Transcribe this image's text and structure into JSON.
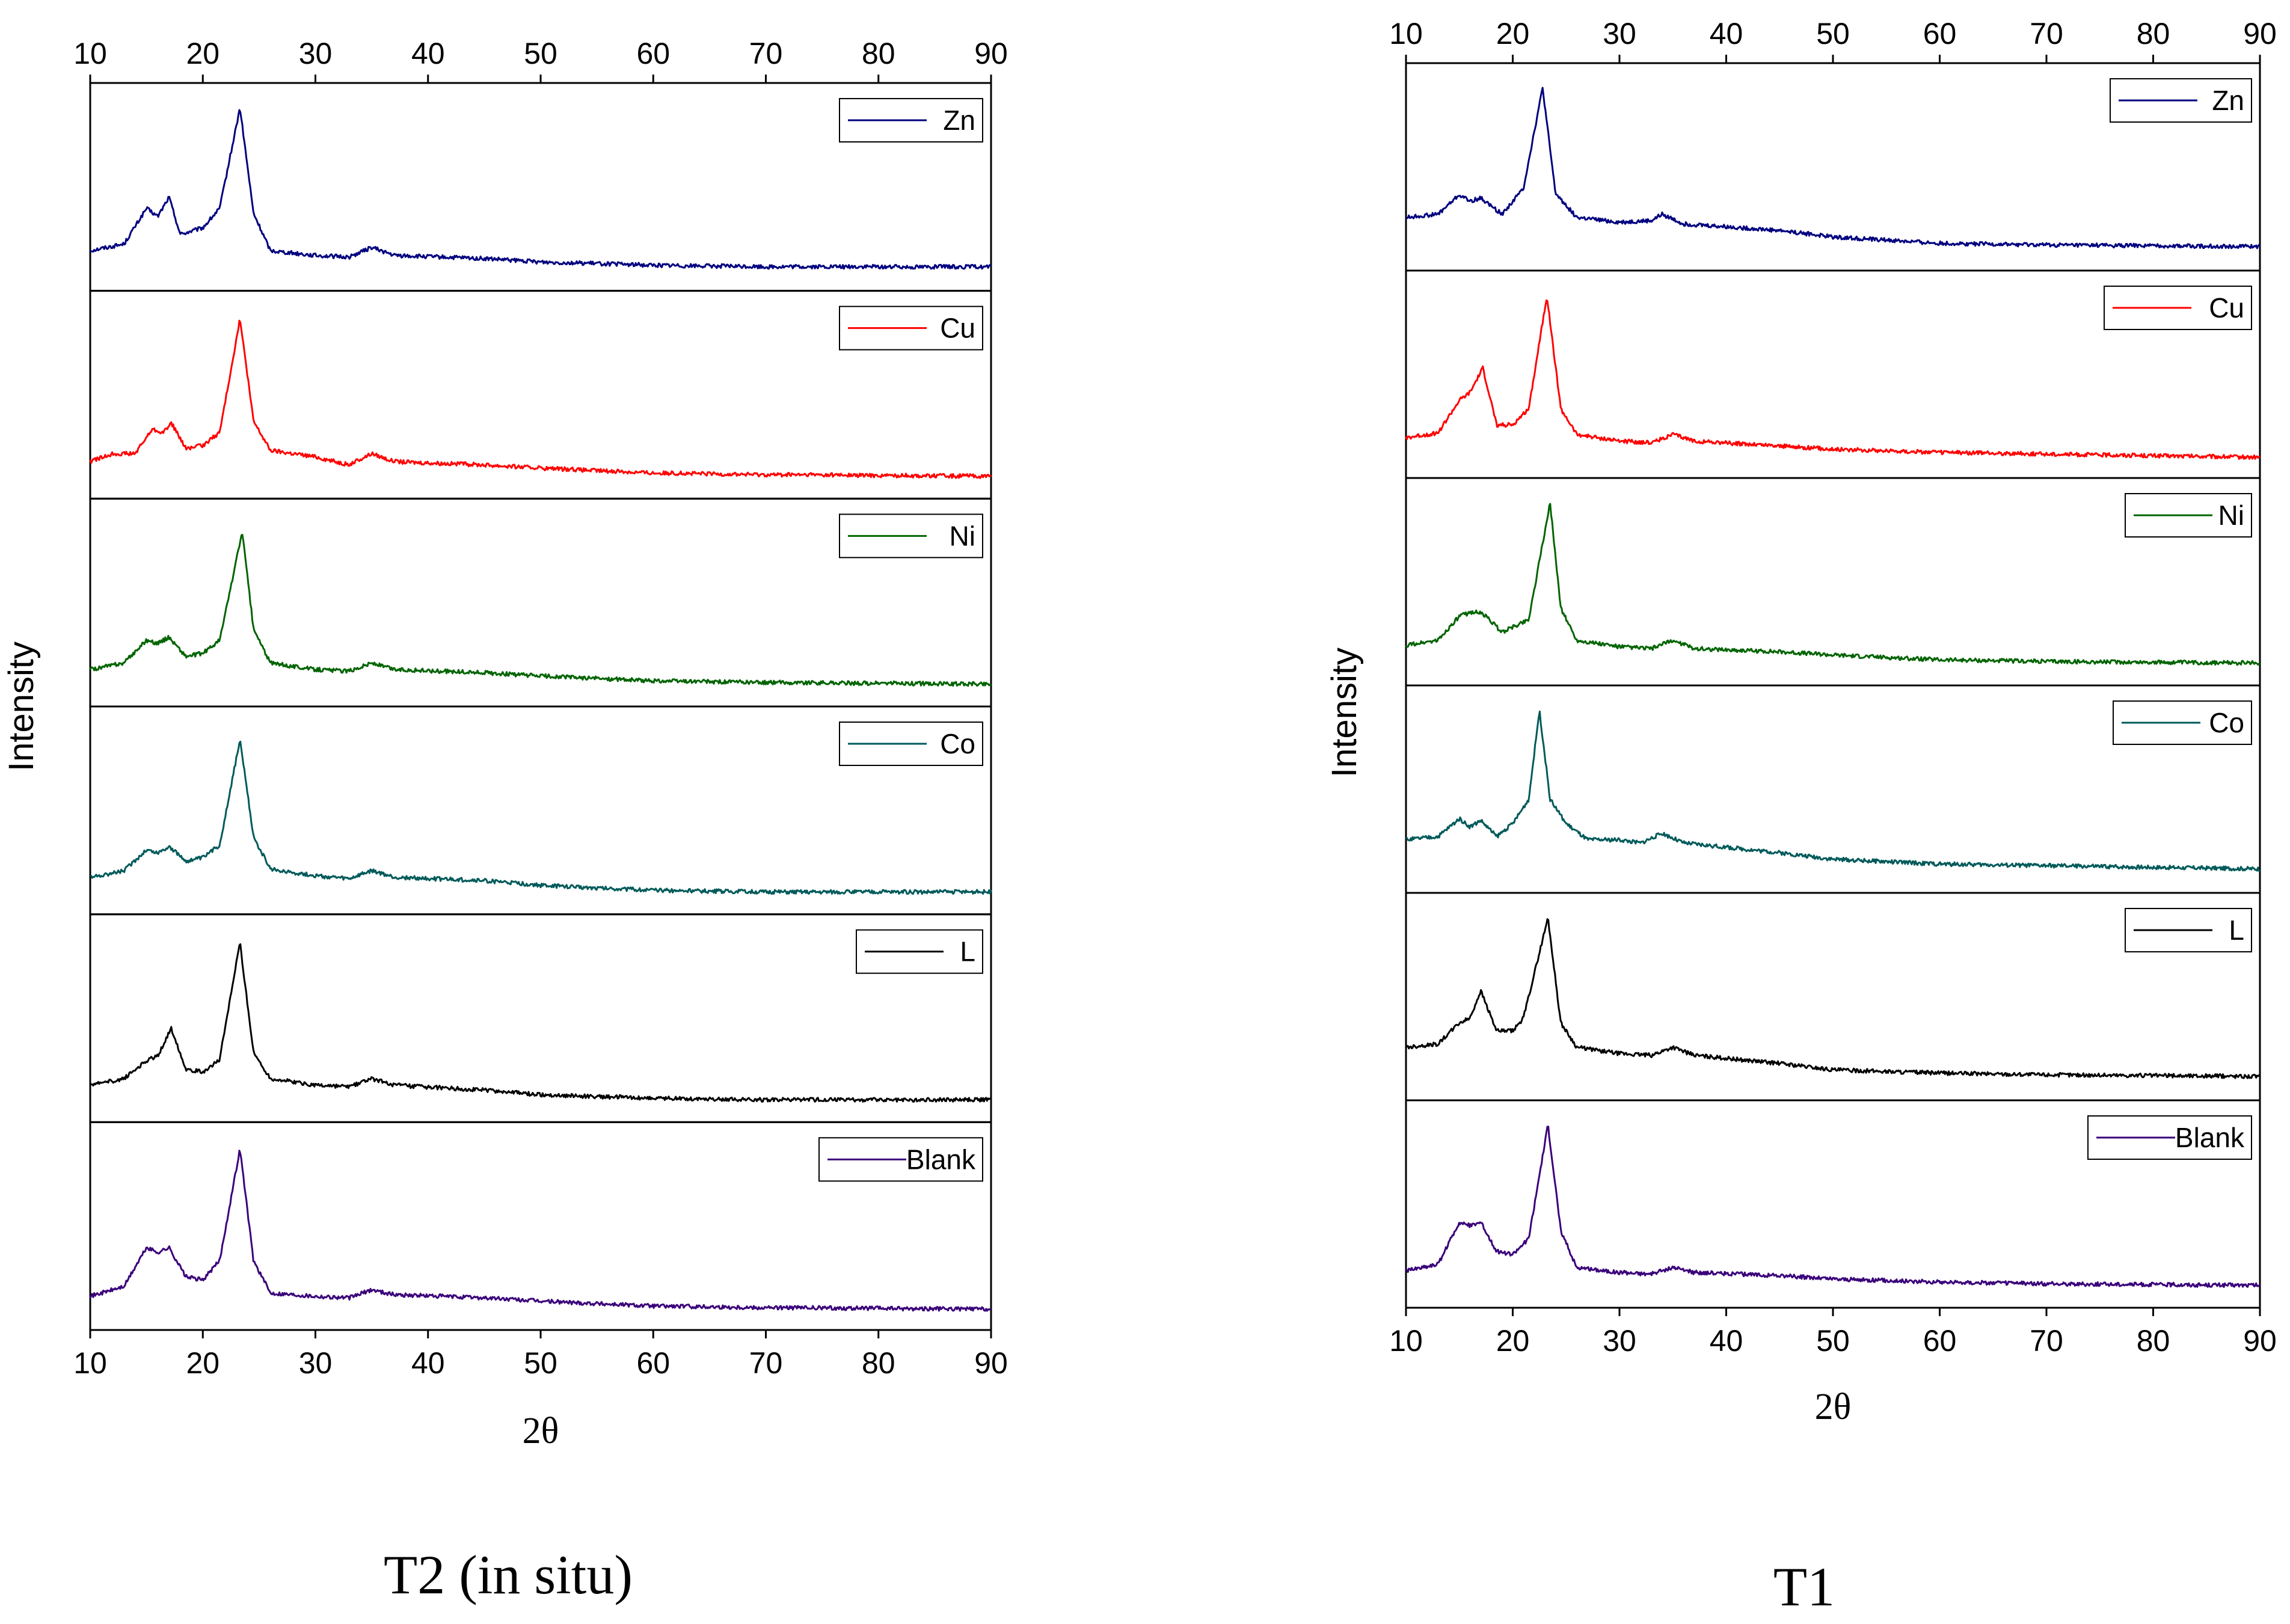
{
  "chart_data": [
    {
      "type": "line",
      "caption": "T2 (in situ)",
      "xlabel": "2θ",
      "ylabel": "Intensity",
      "xlim": [
        10,
        90
      ],
      "xticks": [
        10,
        20,
        30,
        40,
        50,
        60,
        70,
        80,
        90
      ],
      "series": [
        {
          "name": "Zn",
          "color": "#00007f",
          "points": [
            [
              10,
              0.12
            ],
            [
              13,
              0.16
            ],
            [
              15,
              0.38
            ],
            [
              16,
              0.33
            ],
            [
              17,
              0.45
            ],
            [
              18,
              0.22
            ],
            [
              20,
              0.26
            ],
            [
              21.5,
              0.38
            ],
            [
              23.3,
              1.0
            ],
            [
              24.5,
              0.35
            ],
            [
              26,
              0.12
            ],
            [
              30,
              0.09
            ],
            [
              33,
              0.08
            ],
            [
              35,
              0.14
            ],
            [
              37,
              0.09
            ],
            [
              45,
              0.07
            ],
            [
              50,
              0.05
            ],
            [
              60,
              0.03
            ],
            [
              70,
              0.02
            ],
            [
              90,
              0.02
            ]
          ]
        },
        {
          "name": "Cu",
          "color": "#ff0000",
          "points": [
            [
              10,
              0.1
            ],
            [
              12,
              0.15
            ],
            [
              14,
              0.15
            ],
            [
              15.5,
              0.3
            ],
            [
              16.5,
              0.28
            ],
            [
              17.2,
              0.34
            ],
            [
              18.5,
              0.18
            ],
            [
              20,
              0.2
            ],
            [
              21.5,
              0.28
            ],
            [
              23.3,
              0.98
            ],
            [
              24.5,
              0.35
            ],
            [
              26,
              0.17
            ],
            [
              30,
              0.13
            ],
            [
              33,
              0.08
            ],
            [
              35,
              0.15
            ],
            [
              37,
              0.1
            ],
            [
              45,
              0.08
            ],
            [
              50,
              0.06
            ],
            [
              60,
              0.03
            ],
            [
              70,
              0.02
            ],
            [
              90,
              0.01
            ]
          ]
        },
        {
          "name": "Ni",
          "color": "#006400",
          "points": [
            [
              10,
              0.1
            ],
            [
              13,
              0.14
            ],
            [
              15,
              0.28
            ],
            [
              16,
              0.26
            ],
            [
              17,
              0.3
            ],
            [
              18.5,
              0.18
            ],
            [
              20,
              0.2
            ],
            [
              21.5,
              0.28
            ],
            [
              23.5,
              0.95
            ],
            [
              24.5,
              0.35
            ],
            [
              26,
              0.14
            ],
            [
              30,
              0.1
            ],
            [
              33,
              0.09
            ],
            [
              35,
              0.14
            ],
            [
              37,
              0.1
            ],
            [
              45,
              0.08
            ],
            [
              50,
              0.06
            ],
            [
              60,
              0.03
            ],
            [
              70,
              0.02
            ],
            [
              90,
              0.01
            ]
          ]
        },
        {
          "name": "Co",
          "color": "#005a5a",
          "points": [
            [
              10,
              0.1
            ],
            [
              13,
              0.14
            ],
            [
              15,
              0.27
            ],
            [
              16,
              0.25
            ],
            [
              17,
              0.29
            ],
            [
              18.5,
              0.2
            ],
            [
              20,
              0.22
            ],
            [
              21.5,
              0.3
            ],
            [
              23.3,
              0.95
            ],
            [
              24.5,
              0.35
            ],
            [
              26,
              0.15
            ],
            [
              30,
              0.11
            ],
            [
              33,
              0.09
            ],
            [
              35,
              0.14
            ],
            [
              37,
              0.1
            ],
            [
              45,
              0.08
            ],
            [
              50,
              0.05
            ],
            [
              60,
              0.02
            ],
            [
              70,
              0.01
            ],
            [
              90,
              0.01
            ]
          ]
        },
        {
          "name": "L",
          "color": "#000000",
          "points": [
            [
              10,
              0.1
            ],
            [
              13,
              0.14
            ],
            [
              15,
              0.25
            ],
            [
              16,
              0.28
            ],
            [
              17.2,
              0.45
            ],
            [
              18.5,
              0.2
            ],
            [
              20,
              0.18
            ],
            [
              21.5,
              0.26
            ],
            [
              23.3,
              0.98
            ],
            [
              24.5,
              0.3
            ],
            [
              26,
              0.14
            ],
            [
              30,
              0.1
            ],
            [
              33,
              0.09
            ],
            [
              35,
              0.14
            ],
            [
              37,
              0.1
            ],
            [
              45,
              0.07
            ],
            [
              50,
              0.04
            ],
            [
              60,
              0.02
            ],
            [
              70,
              0.01
            ],
            [
              90,
              0.01
            ]
          ]
        },
        {
          "name": "Blank",
          "color": "#3a007a",
          "points": [
            [
              10,
              0.08
            ],
            [
              13,
              0.14
            ],
            [
              15,
              0.38
            ],
            [
              16,
              0.35
            ],
            [
              17,
              0.38
            ],
            [
              18.5,
              0.2
            ],
            [
              20,
              0.18
            ],
            [
              21.5,
              0.3
            ],
            [
              23.3,
              0.99
            ],
            [
              24.5,
              0.3
            ],
            [
              26,
              0.1
            ],
            [
              30,
              0.08
            ],
            [
              33,
              0.07
            ],
            [
              35,
              0.12
            ],
            [
              37,
              0.09
            ],
            [
              45,
              0.07
            ],
            [
              50,
              0.05
            ],
            [
              60,
              0.02
            ],
            [
              70,
              0.01
            ],
            [
              90,
              0.0
            ]
          ]
        }
      ]
    },
    {
      "type": "line",
      "caption": "T1",
      "xlabel": "2θ",
      "ylabel": "Intensity",
      "xlim": [
        10,
        90
      ],
      "xticks": [
        10,
        20,
        30,
        40,
        50,
        60,
        70,
        80,
        90
      ],
      "series": [
        {
          "name": "Zn",
          "color": "#00007f",
          "points": [
            [
              10,
              0.2
            ],
            [
              13,
              0.22
            ],
            [
              15,
              0.34
            ],
            [
              16,
              0.3
            ],
            [
              17,
              0.32
            ],
            [
              19,
              0.22
            ],
            [
              21,
              0.38
            ],
            [
              22.8,
              1.0
            ],
            [
              24,
              0.35
            ],
            [
              26,
              0.2
            ],
            [
              30,
              0.17
            ],
            [
              33,
              0.18
            ],
            [
              34,
              0.22
            ],
            [
              36,
              0.16
            ],
            [
              45,
              0.12
            ],
            [
              50,
              0.08
            ],
            [
              60,
              0.04
            ],
            [
              70,
              0.03
            ],
            [
              90,
              0.02
            ]
          ]
        },
        {
          "name": "Cu",
          "color": "#ff0000",
          "points": [
            [
              10,
              0.12
            ],
            [
              13,
              0.15
            ],
            [
              15,
              0.35
            ],
            [
              16,
              0.4
            ],
            [
              17.2,
              0.55
            ],
            [
              18.5,
              0.2
            ],
            [
              20,
              0.2
            ],
            [
              21.5,
              0.3
            ],
            [
              23.2,
              1.0
            ],
            [
              24.5,
              0.3
            ],
            [
              26,
              0.14
            ],
            [
              30,
              0.1
            ],
            [
              33,
              0.09
            ],
            [
              35,
              0.14
            ],
            [
              37,
              0.1
            ],
            [
              45,
              0.07
            ],
            [
              50,
              0.05
            ],
            [
              60,
              0.03
            ],
            [
              70,
              0.02
            ],
            [
              90,
              0.0
            ]
          ]
        },
        {
          "name": "Ni",
          "color": "#006400",
          "points": [
            [
              10,
              0.12
            ],
            [
              13,
              0.15
            ],
            [
              15,
              0.3
            ],
            [
              16.5,
              0.33
            ],
            [
              17.5,
              0.3
            ],
            [
              19,
              0.2
            ],
            [
              21.5,
              0.28
            ],
            [
              23.5,
              1.0
            ],
            [
              24.5,
              0.35
            ],
            [
              26,
              0.15
            ],
            [
              30,
              0.11
            ],
            [
              33,
              0.1
            ],
            [
              35,
              0.15
            ],
            [
              37,
              0.1
            ],
            [
              45,
              0.08
            ],
            [
              50,
              0.06
            ],
            [
              60,
              0.03
            ],
            [
              70,
              0.02
            ],
            [
              90,
              0.01
            ]
          ]
        },
        {
          "name": "Co",
          "color": "#005a5a",
          "points": [
            [
              10,
              0.2
            ],
            [
              13,
              0.22
            ],
            [
              15,
              0.33
            ],
            [
              16,
              0.28
            ],
            [
              17,
              0.32
            ],
            [
              18.5,
              0.22
            ],
            [
              20,
              0.3
            ],
            [
              21.5,
              0.45
            ],
            [
              22.5,
              1.0
            ],
            [
              23.5,
              0.45
            ],
            [
              25,
              0.3
            ],
            [
              27,
              0.2
            ],
            [
              30,
              0.2
            ],
            [
              32,
              0.18
            ],
            [
              34,
              0.24
            ],
            [
              36,
              0.18
            ],
            [
              45,
              0.12
            ],
            [
              50,
              0.08
            ],
            [
              60,
              0.05
            ],
            [
              70,
              0.04
            ],
            [
              90,
              0.02
            ]
          ]
        },
        {
          "name": "L",
          "color": "#000000",
          "points": [
            [
              10,
              0.2
            ],
            [
              13,
              0.22
            ],
            [
              15,
              0.35
            ],
            [
              16,
              0.38
            ],
            [
              17,
              0.55
            ],
            [
              18.5,
              0.3
            ],
            [
              20,
              0.3
            ],
            [
              21,
              0.38
            ],
            [
              23.3,
              1.0
            ],
            [
              24.5,
              0.35
            ],
            [
              26,
              0.2
            ],
            [
              30,
              0.16
            ],
            [
              33,
              0.15
            ],
            [
              35,
              0.2
            ],
            [
              37,
              0.15
            ],
            [
              45,
              0.1
            ],
            [
              50,
              0.06
            ],
            [
              60,
              0.04
            ],
            [
              70,
              0.03
            ],
            [
              90,
              0.02
            ]
          ]
        },
        {
          "name": "Blank",
          "color": "#3a007a",
          "points": [
            [
              10,
              0.1
            ],
            [
              13,
              0.14
            ],
            [
              15,
              0.4
            ],
            [
              16,
              0.38
            ],
            [
              17,
              0.4
            ],
            [
              18.5,
              0.22
            ],
            [
              20,
              0.2
            ],
            [
              21.5,
              0.3
            ],
            [
              23.3,
              1.0
            ],
            [
              24.5,
              0.35
            ],
            [
              26,
              0.12
            ],
            [
              30,
              0.09
            ],
            [
              33,
              0.08
            ],
            [
              35,
              0.12
            ],
            [
              37,
              0.09
            ],
            [
              45,
              0.07
            ],
            [
              50,
              0.05
            ],
            [
              60,
              0.03
            ],
            [
              70,
              0.02
            ],
            [
              90,
              0.01
            ]
          ]
        }
      ]
    }
  ]
}
